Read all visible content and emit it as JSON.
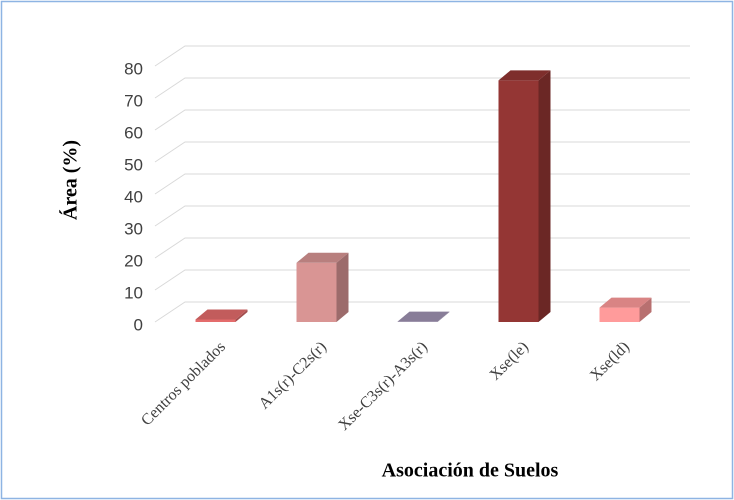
{
  "chart_data": {
    "type": "bar3d",
    "categories": [
      "Centros poblados",
      "A1s(r)-C2s(r)",
      "Xse-C3s(r)-A3s(r)",
      "Xse(le)",
      "Xse(ld)"
    ],
    "values": [
      0.8,
      18.5,
      0.1,
      75.5,
      4.5
    ],
    "colors": [
      "#e46c6c",
      "#d99594",
      "#a093b3",
      "#943634",
      "#ff9b9b"
    ],
    "ylim": [
      0,
      80
    ],
    "yticks": [
      0,
      10,
      20,
      30,
      40,
      50,
      60,
      70,
      80
    ],
    "xlabel": "Asociación de Suelos",
    "ylabel": "Área (%)",
    "grid": true
  }
}
